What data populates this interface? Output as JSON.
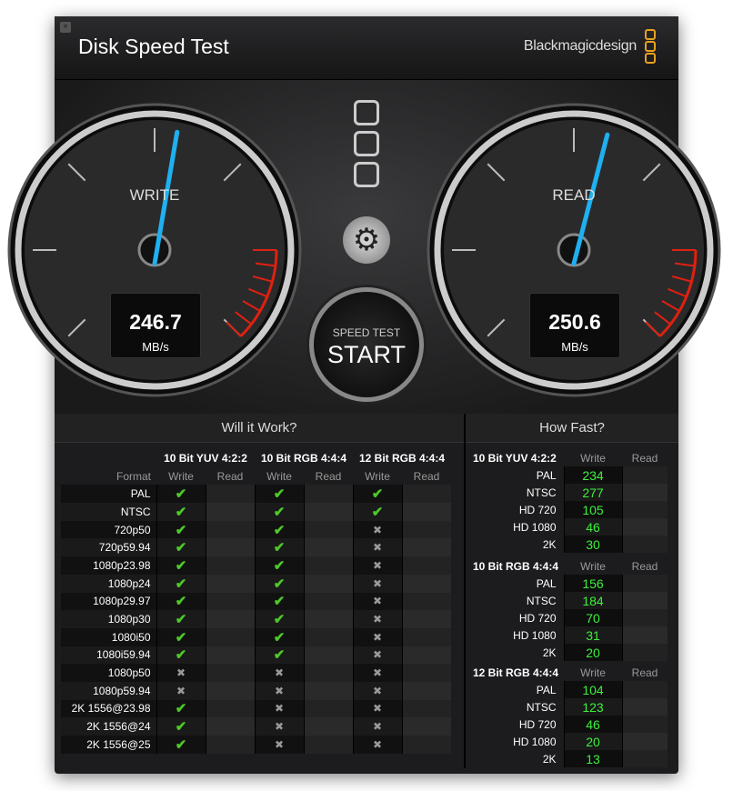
{
  "window": {
    "title": "Disk Speed Test",
    "brand": "Blackmagicdesign",
    "close_icon": "close-icon"
  },
  "gauges": {
    "write": {
      "label": "WRITE",
      "value": "246.7",
      "unit": "MB/s",
      "needle_fraction": 0.54
    },
    "read": {
      "label": "READ",
      "value": "250.6",
      "unit": "MB/s",
      "needle_fraction": 0.56
    }
  },
  "start": {
    "line1": "SPEED TEST",
    "line2": "START"
  },
  "colors": {
    "needle": "#1fb0f0",
    "redzone": "#e02010",
    "check": "#4ec82a",
    "speed": "#3cf03c",
    "logo": "#e8a020"
  },
  "will_it_work": {
    "title": "Will it Work?",
    "format_label": "Format",
    "groups": [
      "10 Bit YUV 4:2:2",
      "10 Bit RGB 4:4:4",
      "12 Bit RGB 4:4:4"
    ],
    "subcols": [
      "Write",
      "Read"
    ],
    "rows": [
      {
        "format": "PAL",
        "w": [
          "ok",
          "ok",
          "ok"
        ]
      },
      {
        "format": "NTSC",
        "w": [
          "ok",
          "ok",
          "ok"
        ]
      },
      {
        "format": "720p50",
        "w": [
          "ok",
          "ok",
          "no"
        ]
      },
      {
        "format": "720p59.94",
        "w": [
          "ok",
          "ok",
          "no"
        ]
      },
      {
        "format": "1080p23.98",
        "w": [
          "ok",
          "ok",
          "no"
        ]
      },
      {
        "format": "1080p24",
        "w": [
          "ok",
          "ok",
          "no"
        ]
      },
      {
        "format": "1080p29.97",
        "w": [
          "ok",
          "ok",
          "no"
        ]
      },
      {
        "format": "1080p30",
        "w": [
          "ok",
          "ok",
          "no"
        ]
      },
      {
        "format": "1080i50",
        "w": [
          "ok",
          "ok",
          "no"
        ]
      },
      {
        "format": "1080i59.94",
        "w": [
          "ok",
          "ok",
          "no"
        ]
      },
      {
        "format": "1080p50",
        "w": [
          "no",
          "no",
          "no"
        ]
      },
      {
        "format": "1080p59.94",
        "w": [
          "no",
          "no",
          "no"
        ]
      },
      {
        "format": "2K 1556@23.98",
        "w": [
          "ok",
          "no",
          "no"
        ]
      },
      {
        "format": "2K 1556@24",
        "w": [
          "ok",
          "no",
          "no"
        ]
      },
      {
        "format": "2K 1556@25",
        "w": [
          "ok",
          "no",
          "no"
        ]
      }
    ]
  },
  "how_fast": {
    "title": "How Fast?",
    "write_label": "Write",
    "read_label": "Read",
    "groups": [
      {
        "name": "10 Bit YUV 4:2:2",
        "rows": [
          [
            "PAL",
            "234"
          ],
          [
            "NTSC",
            "277"
          ],
          [
            "HD 720",
            "105"
          ],
          [
            "HD 1080",
            "46"
          ],
          [
            "2K",
            "30"
          ]
        ]
      },
      {
        "name": "10 Bit RGB 4:4:4",
        "rows": [
          [
            "PAL",
            "156"
          ],
          [
            "NTSC",
            "184"
          ],
          [
            "HD 720",
            "70"
          ],
          [
            "HD 1080",
            "31"
          ],
          [
            "2K",
            "20"
          ]
        ]
      },
      {
        "name": "12 Bit RGB 4:4:4",
        "rows": [
          [
            "PAL",
            "104"
          ],
          [
            "NTSC",
            "123"
          ],
          [
            "HD 720",
            "46"
          ],
          [
            "HD 1080",
            "20"
          ],
          [
            "2K",
            "13"
          ]
        ]
      }
    ]
  }
}
